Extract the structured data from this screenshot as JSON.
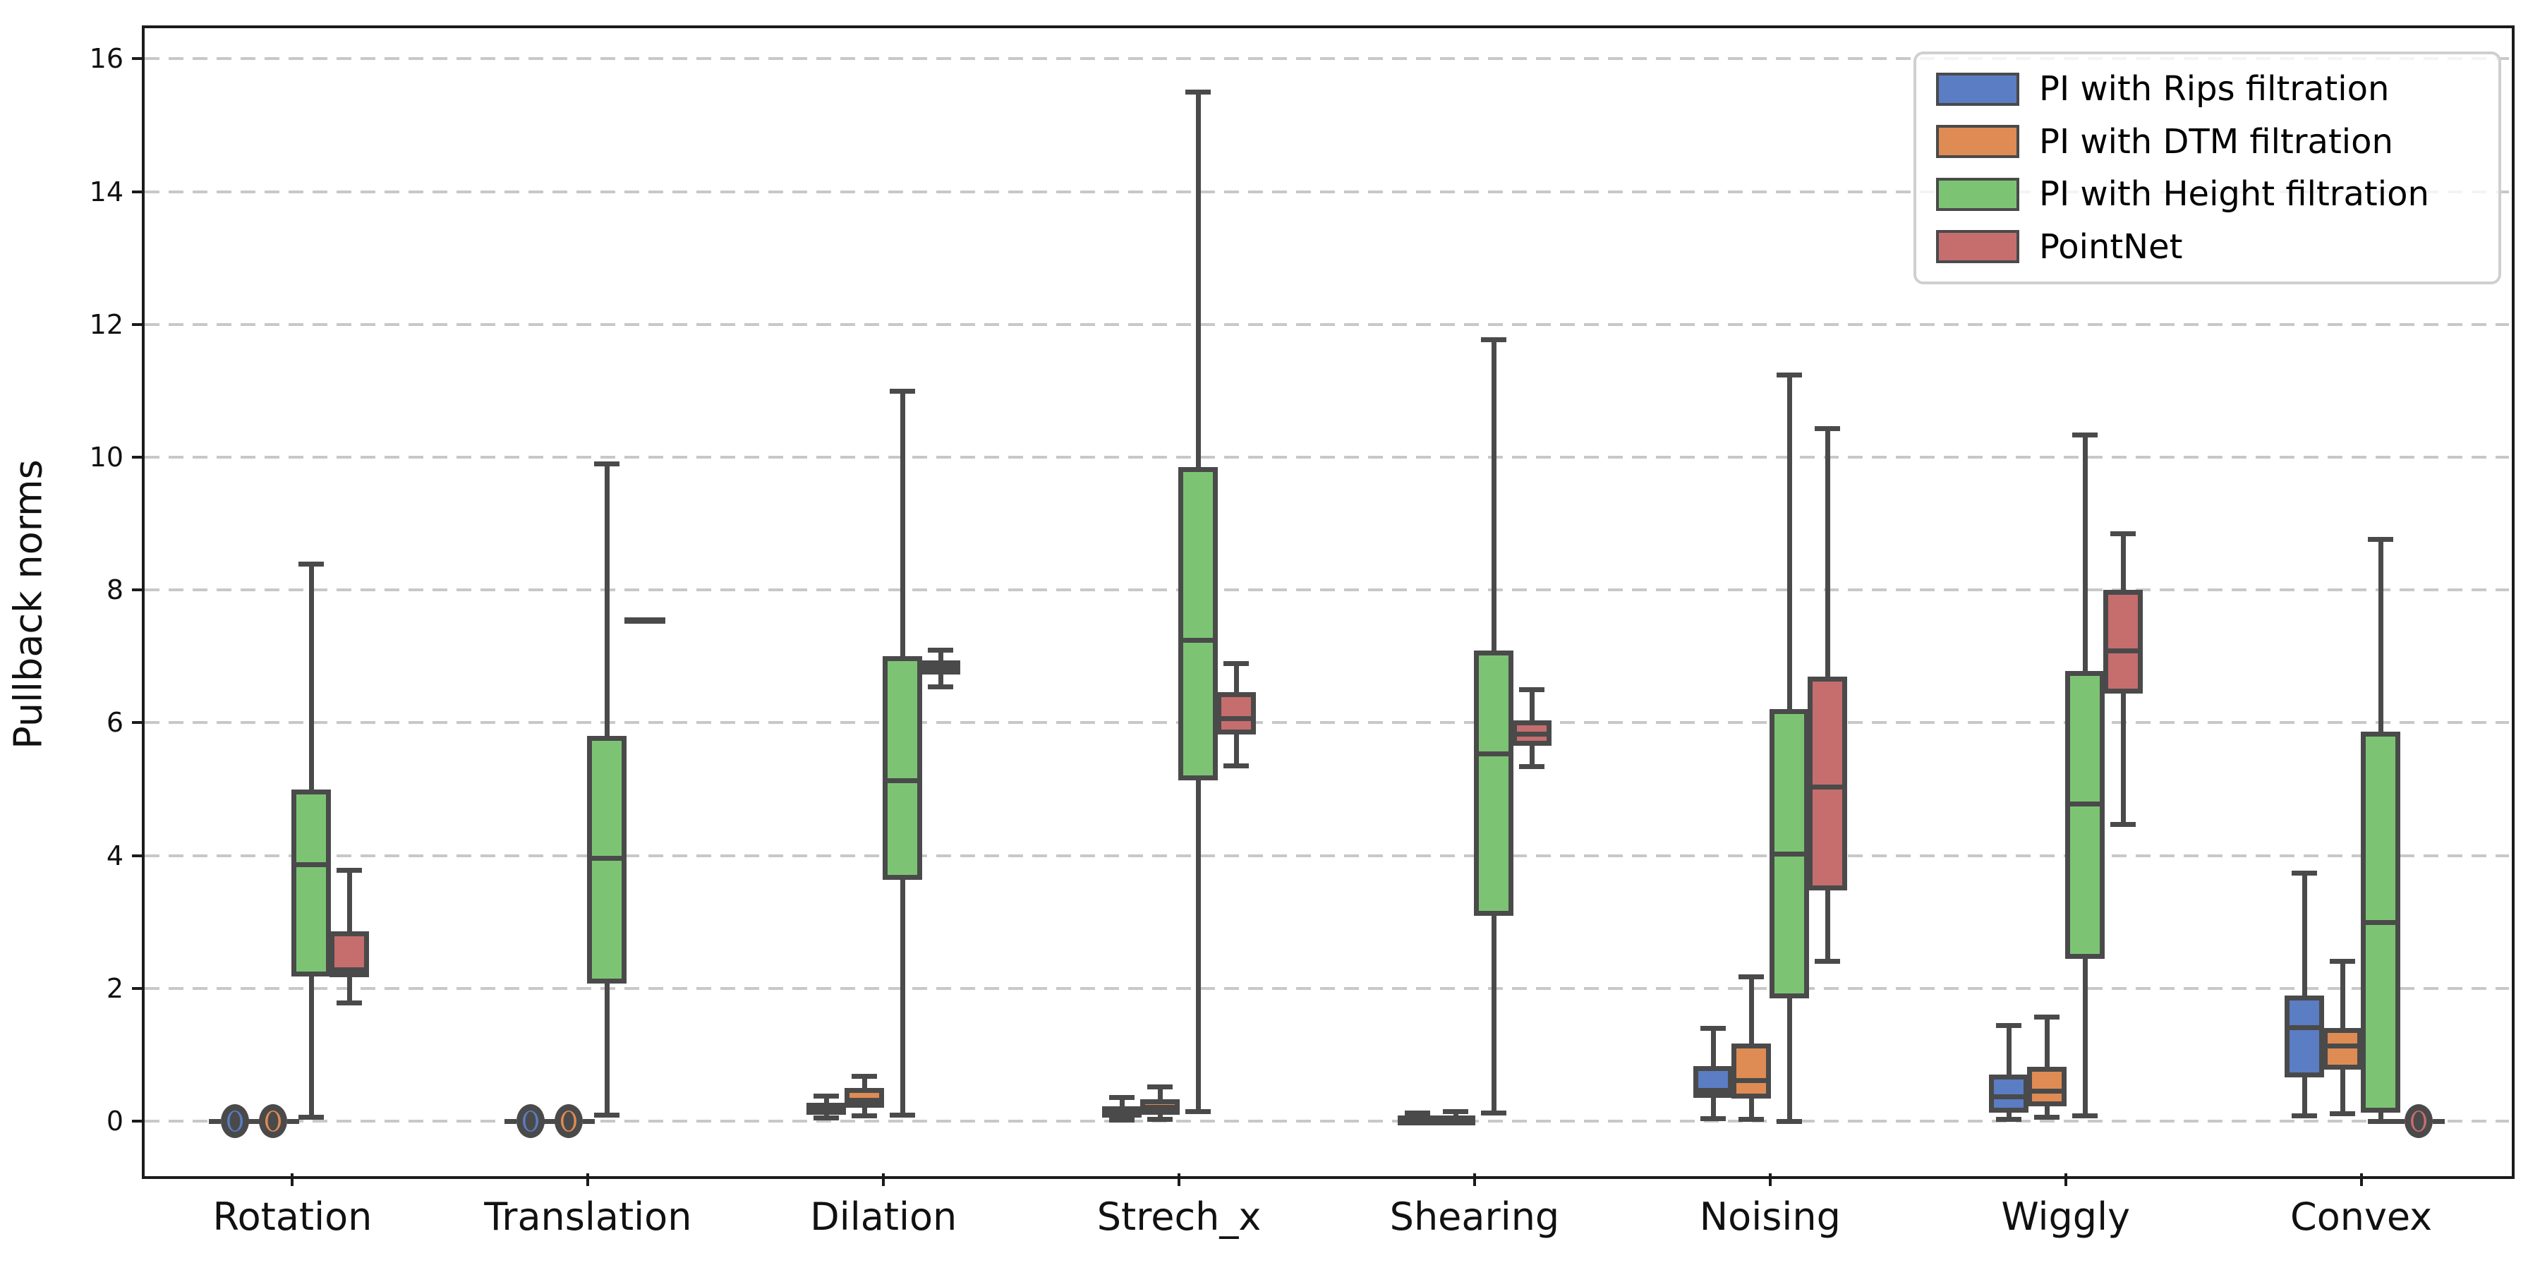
{
  "chart_data": {
    "type": "boxplot",
    "title": "",
    "ylabel": "Pullback norms",
    "xlabel": "",
    "ylim": [
      -0.79,
      16.46
    ],
    "yticks": [
      0,
      2,
      4,
      6,
      8,
      10,
      12,
      14,
      16
    ],
    "grid": "horizontal dashed",
    "legend_position": "upper right",
    "background": "#ffffff",
    "box_edge_color": "#4a4a4a",
    "grid_color": "#c8c8c8",
    "categories": [
      "Rotation",
      "Translation",
      "Dilation",
      "Strech_x",
      "Shearing",
      "Noising",
      "Wiggly",
      "Convex"
    ],
    "series": [
      {
        "name": "PI with Rips filtration",
        "color": "#5a7dc3",
        "boxes": [
          {
            "kind": "zero-marker",
            "value": 0
          },
          {
            "kind": "zero-marker",
            "value": 0
          },
          {
            "kind": "box",
            "whislo": 0.05,
            "q1": 0.1,
            "med": 0.18,
            "q3": 0.28,
            "whishi": 0.38
          },
          {
            "kind": "box",
            "whislo": 0.02,
            "q1": 0.05,
            "med": 0.12,
            "q3": 0.22,
            "whishi": 0.36
          },
          {
            "kind": "box",
            "whislo": 0.01,
            "q1": 0.03,
            "med": 0.05,
            "q3": 0.08,
            "whishi": 0.13
          },
          {
            "kind": "box",
            "whislo": 0.04,
            "q1": 0.35,
            "med": 0.5,
            "q3": 0.83,
            "whishi": 1.4
          },
          {
            "kind": "box",
            "whislo": 0.03,
            "q1": 0.13,
            "med": 0.4,
            "q3": 0.7,
            "whishi": 1.44
          },
          {
            "kind": "box",
            "whislo": 0.08,
            "q1": 0.66,
            "med": 1.45,
            "q3": 1.89,
            "whishi": 3.74
          }
        ]
      },
      {
        "name": "PI with DTM filtration",
        "color": "#df8b54",
        "boxes": [
          {
            "kind": "zero-marker",
            "value": 0
          },
          {
            "kind": "zero-marker",
            "value": 0
          },
          {
            "kind": "box",
            "whislo": 0.08,
            "q1": 0.2,
            "med": 0.35,
            "q3": 0.5,
            "whishi": 0.68
          },
          {
            "kind": "box",
            "whislo": 0.03,
            "q1": 0.1,
            "med": 0.2,
            "q3": 0.33,
            "whishi": 0.52
          },
          {
            "kind": "box",
            "whislo": 0.02,
            "q1": 0.04,
            "med": 0.06,
            "q3": 0.09,
            "whishi": 0.15
          },
          {
            "kind": "box",
            "whislo": 0.03,
            "q1": 0.34,
            "med": 0.65,
            "q3": 1.17,
            "whishi": 2.18
          },
          {
            "kind": "box",
            "whislo": 0.06,
            "q1": 0.22,
            "med": 0.49,
            "q3": 0.82,
            "whishi": 1.57
          },
          {
            "kind": "box",
            "whislo": 0.12,
            "q1": 0.78,
            "med": 1.17,
            "q3": 1.4,
            "whishi": 2.41
          }
        ]
      },
      {
        "name": "PI with Height filtration",
        "color": "#7cc474",
        "boxes": [
          {
            "kind": "box",
            "whislo": 0.06,
            "q1": 2.18,
            "med": 3.9,
            "q3": 5.0,
            "whishi": 8.4
          },
          {
            "kind": "box",
            "whislo": 0.1,
            "q1": 2.07,
            "med": 4.0,
            "q3": 5.8,
            "whishi": 9.9
          },
          {
            "kind": "box",
            "whislo": 0.1,
            "q1": 3.63,
            "med": 5.16,
            "q3": 7.0,
            "whishi": 11.0
          },
          {
            "kind": "box",
            "whislo": 0.15,
            "q1": 5.13,
            "med": 7.28,
            "q3": 9.85,
            "whishi": 15.5
          },
          {
            "kind": "box",
            "whislo": 0.13,
            "q1": 3.09,
            "med": 5.57,
            "q3": 7.09,
            "whishi": 11.78
          },
          {
            "kind": "box",
            "whislo": 0.0,
            "q1": 1.85,
            "med": 4.06,
            "q3": 6.21,
            "whishi": 11.24
          },
          {
            "kind": "box",
            "whislo": 0.09,
            "q1": 2.44,
            "med": 4.81,
            "q3": 6.78,
            "whishi": 10.34
          },
          {
            "kind": "box",
            "whislo": 0.0,
            "q1": 0.13,
            "med": 3.03,
            "q3": 5.87,
            "whishi": 8.77
          }
        ]
      },
      {
        "name": "PointNet",
        "color": "#c66d6e",
        "boxes": [
          {
            "kind": "box",
            "whislo": 1.79,
            "q1": 2.17,
            "med": 2.28,
            "q3": 2.86,
            "whishi": 3.78
          },
          {
            "kind": "flat",
            "value": 7.55
          },
          {
            "kind": "box",
            "whislo": 6.55,
            "q1": 6.73,
            "med": 6.83,
            "q3": 6.94,
            "whishi": 7.1
          },
          {
            "kind": "box",
            "whislo": 5.36,
            "q1": 5.82,
            "med": 6.1,
            "q3": 6.46,
            "whishi": 6.9
          },
          {
            "kind": "box",
            "whislo": 5.35,
            "q1": 5.65,
            "med": 5.87,
            "q3": 6.04,
            "whishi": 6.5
          },
          {
            "kind": "box",
            "whislo": 2.41,
            "q1": 3.47,
            "med": 5.07,
            "q3": 6.69,
            "whishi": 10.44
          },
          {
            "kind": "box",
            "whislo": 4.47,
            "q1": 6.44,
            "med": 7.12,
            "q3": 8.0,
            "whishi": 8.85
          },
          {
            "kind": "zero-marker",
            "value": 0
          }
        ]
      }
    ]
  }
}
